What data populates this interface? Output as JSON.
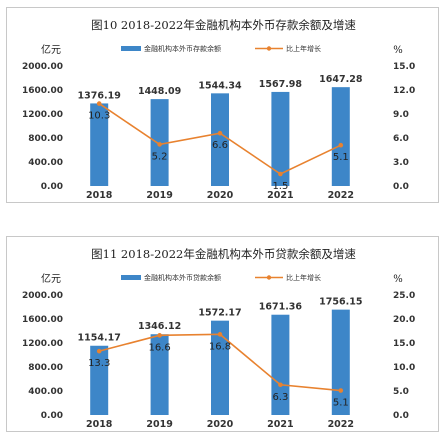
{
  "accent": {
    "bar": "#3d86c8",
    "line": "#e8822f",
    "point_label": "#222222"
  },
  "chart_data": [
    {
      "type": "bar",
      "title": "图10  2018-2022年金融机构本外币存款余额及增速",
      "ylabel": "亿元",
      "y2label": "%",
      "categories": [
        "2018",
        "2019",
        "2020",
        "2021",
        "2022"
      ],
      "series": [
        {
          "name": "金融机构本外币存款余额",
          "type": "bar",
          "axis": "left",
          "values": [
            1376.19,
            1448.09,
            1544.34,
            1567.98,
            1647.28
          ]
        },
        {
          "name": "比上年增长",
          "type": "line",
          "axis": "right",
          "values": [
            10.3,
            5.2,
            6.6,
            1.5,
            5.1
          ]
        }
      ],
      "ylim": [
        0,
        2000
      ],
      "y2lim": [
        0,
        15
      ],
      "yticks": [
        "2000.00",
        "1600.00",
        "1200.00",
        "800.00",
        "400.00",
        "0.00"
      ],
      "y2ticks": [
        "15.0",
        "12.0",
        "9.0",
        "6.0",
        "3.0",
        "0.0"
      ],
      "legend": "top-center",
      "grid": false
    },
    {
      "type": "bar",
      "title": "图11  2018-2022年金融机构本外币贷款余额及增速",
      "ylabel": "亿元",
      "y2label": "%",
      "categories": [
        "2018",
        "2019",
        "2020",
        "2021",
        "2022"
      ],
      "series": [
        {
          "name": "金融机构本外币贷款余额",
          "type": "bar",
          "axis": "left",
          "values": [
            1154.17,
            1346.12,
            1572.17,
            1671.36,
            1756.15
          ]
        },
        {
          "name": "比上年增长",
          "type": "line",
          "axis": "right",
          "values": [
            13.3,
            16.6,
            16.8,
            6.3,
            5.1
          ]
        }
      ],
      "ylim": [
        0,
        2000
      ],
      "y2lim": [
        0,
        25
      ],
      "yticks": [
        "2000.00",
        "1600.00",
        "1200.00",
        "800.00",
        "400.00",
        "0.00"
      ],
      "y2ticks": [
        "25.0",
        "20.0",
        "15.0",
        "10.0",
        "5.0",
        "0.0"
      ],
      "legend": "top-center",
      "grid": false
    }
  ]
}
